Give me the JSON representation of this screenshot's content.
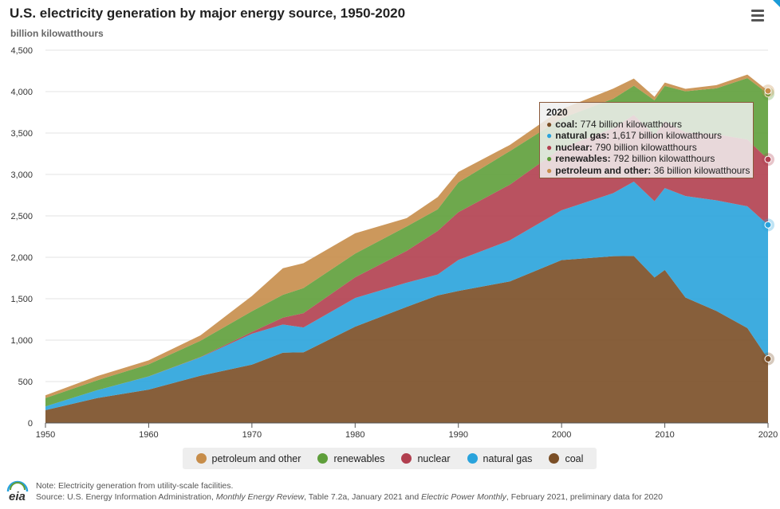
{
  "header": {
    "title": "U.S. electricity generation by major energy source, 1950-2020",
    "subtitle": "billion kilowatthours"
  },
  "menu": {
    "icon": "hamburger-menu-icon"
  },
  "legend": [
    {
      "label": "petroleum and other",
      "color": "#c78d4a"
    },
    {
      "label": "renewables",
      "color": "#5e9e3a"
    },
    {
      "label": "nuclear",
      "color": "#b13f4f"
    },
    {
      "label": "natural gas",
      "color": "#29a3dc"
    },
    {
      "label": "coal",
      "color": "#7a4e26"
    }
  ],
  "tooltip": {
    "year": "2020",
    "rows": [
      {
        "name": "coal:",
        "value": "774 billion kilowatthours",
        "color": "#7a4e26"
      },
      {
        "name": "natural gas:",
        "value": "1,617 billion kilowatthours",
        "color": "#29a3dc"
      },
      {
        "name": "nuclear:",
        "value": "790 billion kilowatthours",
        "color": "#b13f4f"
      },
      {
        "name": "renewables:",
        "value": "792 billion kilowatthours",
        "color": "#5e9e3a"
      },
      {
        "name": "petroleum and other:",
        "value": "36 billion kilowatthours",
        "color": "#c78d4a"
      }
    ]
  },
  "footer": {
    "logo_text": "eia",
    "note": "Note: Electricity generation from utility-scale facilities.",
    "source_1": "Source: U.S. Energy Information Administration, ",
    "source_2": "Monthly Energy Review",
    "source_3": ", Table 7.2a, January 2021 and ",
    "source_4": "Electric Power Monthly",
    "source_5": ", February 2021, preliminary data for 2020"
  },
  "chart_data": {
    "type": "area",
    "stacked": true,
    "title": "U.S. electricity generation by major energy source, 1950-2020",
    "ylabel": "billion kilowatthours",
    "xlim": [
      1950,
      2020
    ],
    "ylim": [
      0,
      4500
    ],
    "x_ticks": [
      "1950",
      "1960",
      "1970",
      "1980",
      "1990",
      "2000",
      "2010",
      "2020"
    ],
    "y_ticks": [
      "0",
      "500",
      "1,000",
      "1,500",
      "2,000",
      "2,500",
      "3,000",
      "3,500",
      "4,000",
      "4,500"
    ],
    "x": [
      1950,
      1955,
      1960,
      1965,
      1970,
      1973,
      1975,
      1980,
      1985,
      1988,
      1990,
      1995,
      2000,
      2005,
      2007,
      2009,
      2010,
      2012,
      2015,
      2018,
      2020
    ],
    "series": [
      {
        "name": "coal",
        "color": "#7a4e26",
        "values": [
          155,
          300,
          403,
          570,
          704,
          848,
          853,
          1162,
          1402,
          1540,
          1594,
          1709,
          1966,
          2013,
          2016,
          1756,
          1847,
          1514,
          1352,
          1146,
          774
        ]
      },
      {
        "name": "natural gas",
        "color": "#29a3dc",
        "values": [
          45,
          95,
          158,
          222,
          373,
          341,
          300,
          346,
          292,
          252,
          373,
          496,
          601,
          761,
          897,
          921,
          988,
          1225,
          1335,
          1469,
          1617
        ]
      },
      {
        "name": "nuclear",
        "color": "#b13f4f",
        "values": [
          0,
          0,
          1,
          4,
          22,
          83,
          173,
          251,
          384,
          527,
          577,
          673,
          754,
          782,
          806,
          799,
          807,
          769,
          797,
          807,
          790
        ]
      },
      {
        "name": "renewables",
        "color": "#5e9e3a",
        "values": [
          100,
          120,
          146,
          195,
          250,
          275,
          303,
          285,
          295,
          260,
          360,
          405,
          356,
          358,
          352,
          419,
          427,
          496,
          556,
          742,
          792
        ]
      },
      {
        "name": "petroleum and other",
        "color": "#c78d4a",
        "values": [
          34,
          50,
          48,
          65,
          184,
          321,
          300,
          246,
          100,
          148,
          126,
          74,
          111,
          122,
          86,
          42,
          40,
          30,
          38,
          42,
          36
        ]
      }
    ]
  }
}
